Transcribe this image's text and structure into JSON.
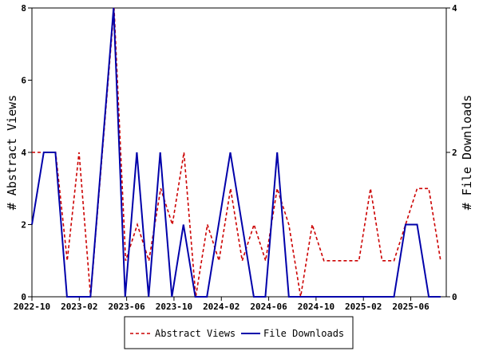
{
  "chart_data": {
    "type": "line",
    "title": "",
    "xlabel": "",
    "ylabel_left": "# Abstract Views",
    "ylabel_right": "# File Downloads",
    "ylim_left": [
      0,
      8
    ],
    "ylim_right": [
      0,
      4
    ],
    "yticks_left": [
      "0",
      "2",
      "4",
      "6",
      "8"
    ],
    "yticks_right": [
      "0",
      "2",
      "4"
    ],
    "x_ticks": [
      "2022-10",
      "2023-02",
      "2023-06",
      "2023-10",
      "2024-02",
      "2024-06",
      "2024-10",
      "2025-02",
      "2025-06"
    ],
    "x_tick_index": [
      0,
      4,
      8,
      12,
      16,
      20,
      24,
      28,
      32
    ],
    "x": [
      "2022-10",
      "2022-11",
      "2022-12",
      "2023-01",
      "2023-02",
      "2023-03",
      "2023-04",
      "2023-05",
      "2023-06",
      "2023-07",
      "2023-08",
      "2023-09",
      "2023-10",
      "2023-11",
      "2023-12",
      "2024-01",
      "2024-02",
      "2024-03",
      "2024-04",
      "2024-05",
      "2024-06",
      "2024-07",
      "2024-08",
      "2024-09",
      "2024-10",
      "2024-11",
      "2024-12",
      "2025-01",
      "2025-02",
      "2025-03",
      "2025-04",
      "2025-05",
      "2025-06",
      "2025-07",
      "2025-08",
      "2025-09"
    ],
    "grid": false,
    "legend_position": "bottom-center",
    "series": [
      {
        "name": "Abstract Views",
        "axis": "left",
        "color": "#cc0000",
        "style": "dashed",
        "points": [
          [
            0,
            4
          ],
          [
            1,
            4
          ],
          [
            2,
            4
          ],
          [
            2.98,
            1
          ],
          [
            3.98,
            4
          ],
          [
            4.96,
            0
          ],
          [
            6.94,
            8
          ],
          [
            7.92,
            1
          ],
          [
            8.9,
            2
          ],
          [
            9.88,
            1
          ],
          [
            10.88,
            3
          ],
          [
            11.86,
            2
          ],
          [
            12.84,
            4
          ],
          [
            13.84,
            0
          ],
          [
            14.82,
            2
          ],
          [
            15.8,
            1
          ],
          [
            16.78,
            3
          ],
          [
            17.76,
            1
          ],
          [
            18.76,
            2
          ],
          [
            19.74,
            1
          ],
          [
            20.72,
            3
          ],
          [
            21.7,
            2
          ],
          [
            22.7,
            0
          ],
          [
            23.68,
            2
          ],
          [
            24.66,
            1
          ],
          [
            25.64,
            1
          ],
          [
            26.64,
            1
          ],
          [
            27.62,
            1
          ],
          [
            28.6,
            3
          ],
          [
            29.58,
            1
          ],
          [
            30.58,
            1
          ],
          [
            31.56,
            2
          ],
          [
            32.54,
            3
          ],
          [
            33.52,
            3
          ],
          [
            34.52,
            1
          ]
        ]
      },
      {
        "name": "File Downloads",
        "axis": "right",
        "color": "#0000aa",
        "style": "solid",
        "points": [
          [
            0,
            1
          ],
          [
            1,
            2
          ],
          [
            1.98,
            2
          ],
          [
            2.96,
            0
          ],
          [
            3.94,
            0
          ],
          [
            4.94,
            0
          ],
          [
            6.9,
            4
          ],
          [
            7.88,
            0
          ],
          [
            8.86,
            2
          ],
          [
            9.86,
            0
          ],
          [
            10.84,
            2
          ],
          [
            11.82,
            0
          ],
          [
            12.8,
            1
          ],
          [
            13.8,
            0
          ],
          [
            14.78,
            0
          ],
          [
            16.76,
            2
          ],
          [
            18.74,
            0
          ],
          [
            19.72,
            0
          ],
          [
            20.72,
            2
          ],
          [
            21.7,
            0
          ],
          [
            22.68,
            0
          ],
          [
            23.68,
            0
          ],
          [
            24.66,
            0
          ],
          [
            25.64,
            0
          ],
          [
            26.64,
            0
          ],
          [
            27.62,
            0
          ],
          [
            28.6,
            0
          ],
          [
            29.58,
            0
          ],
          [
            30.58,
            0
          ],
          [
            31.56,
            1
          ],
          [
            32.54,
            1
          ],
          [
            33.52,
            0
          ],
          [
            34.52,
            0
          ]
        ]
      }
    ]
  }
}
